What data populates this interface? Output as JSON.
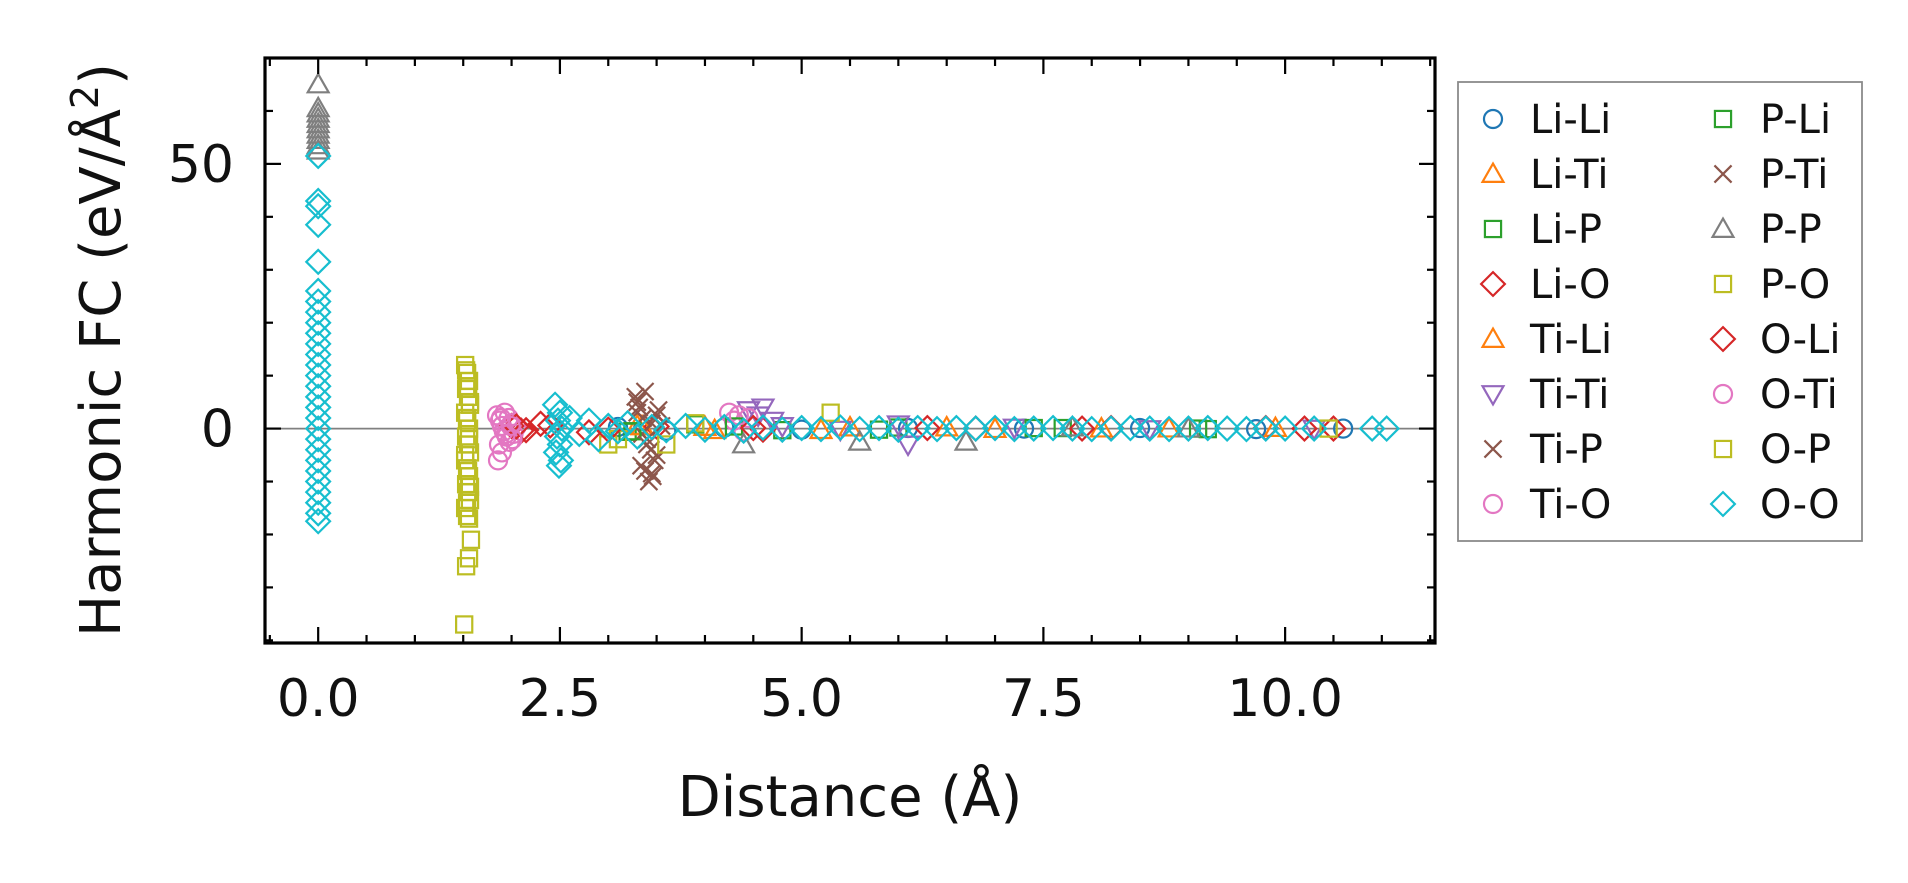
{
  "chart_data": {
    "type": "scatter",
    "xlabel": "Distance (Å)",
    "ylabel_main": "Harmonic FC (eV/Å",
    "ylabel_sup": "2",
    "ylabel_close": ")",
    "xlim": [
      -0.55,
      11.55
    ],
    "ylim": [
      -40.5,
      70
    ],
    "xticks": [
      0.0,
      2.5,
      5.0,
      7.5,
      10.0
    ],
    "xtick_labels": [
      "0.0",
      "2.5",
      "5.0",
      "7.5",
      "10.0"
    ],
    "yticks": [
      0,
      50
    ],
    "ytick_labels": [
      "0",
      "50"
    ],
    "x_minor_step": 0.5,
    "y_minor_step": 10,
    "zero_line": true,
    "legend_position": "right-outside",
    "legend_columns": 2,
    "series": [
      {
        "name": "Li-Li",
        "marker": "circle",
        "color": "#1f77b4",
        "points": [
          [
            3.1,
            0.3
          ],
          [
            3.6,
            -0.4
          ],
          [
            4.2,
            0.2
          ],
          [
            5.0,
            -0.2
          ],
          [
            6.1,
            0.1
          ],
          [
            7.3,
            0.0
          ],
          [
            8.5,
            0.1
          ],
          [
            9.7,
            -0.1
          ],
          [
            10.6,
            0.0
          ]
        ]
      },
      {
        "name": "Li-Ti",
        "marker": "triangle-up",
        "color": "#ff7f0e",
        "points": [
          [
            3.3,
            0.5
          ],
          [
            4.0,
            0.3
          ],
          [
            5.2,
            -0.3
          ],
          [
            6.5,
            0.2
          ],
          [
            8.1,
            0.0
          ],
          [
            9.9,
            0.1
          ]
        ]
      },
      {
        "name": "Li-P",
        "marker": "square",
        "color": "#2ca02c",
        "points": [
          [
            3.2,
            -0.6
          ],
          [
            3.9,
            0.8
          ],
          [
            4.8,
            -0.3
          ],
          [
            6.0,
            0.2
          ],
          [
            7.7,
            0.1
          ],
          [
            9.2,
            -0.1
          ]
        ]
      },
      {
        "name": "Li-O",
        "marker": "diamond",
        "color": "#d62728",
        "points": [
          [
            2.0,
            0.5
          ],
          [
            2.1,
            -0.4
          ],
          [
            2.3,
            0.9
          ],
          [
            2.8,
            -0.7
          ],
          [
            3.5,
            0.4
          ],
          [
            4.6,
            -0.2
          ],
          [
            6.3,
            0.1
          ],
          [
            7.9,
            0.0
          ],
          [
            9.8,
            0.1
          ],
          [
            10.5,
            0.0
          ]
        ]
      },
      {
        "name": "Ti-Li",
        "marker": "triangle-up",
        "color": "#ff7f0e",
        "points": [
          [
            3.35,
            0.4
          ],
          [
            4.1,
            -0.3
          ],
          [
            5.5,
            0.2
          ],
          [
            7.0,
            -0.1
          ],
          [
            8.8,
            0.0
          ]
        ]
      },
      {
        "name": "Ti-Ti",
        "marker": "triangle-down",
        "color": "#9467bd",
        "points": [
          [
            4.45,
            3.5
          ],
          [
            4.55,
            2.5
          ],
          [
            4.6,
            4.0
          ],
          [
            4.7,
            1.5
          ],
          [
            4.8,
            0.5
          ],
          [
            5.4,
            -0.2
          ],
          [
            6.0,
            0.8
          ],
          [
            6.1,
            -3.0
          ],
          [
            7.2,
            0.2
          ],
          [
            8.6,
            -0.1
          ],
          [
            10.3,
            0.0
          ]
        ]
      },
      {
        "name": "Ti-P",
        "marker": "x",
        "color": "#8c564b",
        "points": [
          [
            3.28,
            6.0
          ],
          [
            3.32,
            4.0
          ],
          [
            3.36,
            2.0
          ],
          [
            3.4,
            -2.0
          ],
          [
            3.44,
            -4.0
          ],
          [
            3.48,
            -6.0
          ],
          [
            3.38,
            -8.0
          ],
          [
            3.42,
            -10.0
          ],
          [
            3.46,
            -9.0
          ],
          [
            3.34,
            -7.0
          ],
          [
            3.5,
            -5.0
          ],
          [
            3.3,
            5.0
          ],
          [
            3.52,
            3.5
          ],
          [
            3.55,
            0.5
          ],
          [
            3.45,
            1.0
          ],
          [
            3.35,
            -1.0
          ]
        ]
      },
      {
        "name": "Ti-O",
        "marker": "circle",
        "color": "#e377c2",
        "points": [
          [
            1.85,
            2.5
          ],
          [
            1.88,
            1.5
          ],
          [
            1.9,
            0.5
          ],
          [
            1.92,
            -0.5
          ],
          [
            1.95,
            -1.5
          ],
          [
            1.87,
            -3.0
          ],
          [
            1.9,
            -4.5
          ],
          [
            1.86,
            -6.0
          ],
          [
            1.97,
            2.0
          ],
          [
            2.0,
            1.0
          ],
          [
            2.02,
            -1.0
          ],
          [
            1.93,
            3.0
          ],
          [
            1.98,
            -2.5
          ],
          [
            2.05,
            0.3
          ],
          [
            4.25,
            3.0
          ],
          [
            4.3,
            1.5
          ],
          [
            4.4,
            -0.5
          ],
          [
            4.45,
            2.0
          ]
        ]
      },
      {
        "name": "P-Li",
        "marker": "square",
        "color": "#2ca02c",
        "points": [
          [
            3.25,
            -0.5
          ],
          [
            4.3,
            0.4
          ],
          [
            5.8,
            -0.2
          ],
          [
            7.4,
            0.1
          ],
          [
            9.1,
            0.0
          ]
        ]
      },
      {
        "name": "P-Ti",
        "marker": "x",
        "color": "#8c564b",
        "points": [
          [
            3.3,
            3.0
          ],
          [
            3.4,
            -3.0
          ],
          [
            3.5,
            2.5
          ],
          [
            3.45,
            -8.5
          ],
          [
            3.38,
            7.0
          ]
        ]
      },
      {
        "name": "P-P",
        "marker": "triangle-up",
        "color": "#7f7f7f",
        "points": [
          [
            0.0,
            65.0
          ],
          [
            0.0,
            59.5
          ],
          [
            0.0,
            58.5
          ],
          [
            0.0,
            57.5
          ],
          [
            0.0,
            56.5
          ],
          [
            0.0,
            55.5
          ],
          [
            0.0,
            54.5
          ],
          [
            0.0,
            53.5
          ],
          [
            0.0,
            52.5
          ],
          [
            0.0,
            60.5
          ],
          [
            4.4,
            -3.0
          ],
          [
            5.6,
            -2.5
          ],
          [
            6.7,
            -2.5
          ],
          [
            7.8,
            0.2
          ],
          [
            9.0,
            0.0
          ]
        ]
      },
      {
        "name": "P-O",
        "marker": "square",
        "color": "#bcbd22",
        "points": [
          [
            1.52,
            12.0
          ],
          [
            1.54,
            10.5
          ],
          [
            1.56,
            9.0
          ],
          [
            1.53,
            7.5
          ],
          [
            1.55,
            6.0
          ],
          [
            1.57,
            4.5
          ],
          [
            1.52,
            3.0
          ],
          [
            1.54,
            1.5
          ],
          [
            1.56,
            0.0
          ],
          [
            1.53,
            -1.5
          ],
          [
            1.55,
            -3.0
          ],
          [
            1.57,
            -4.5
          ],
          [
            1.52,
            -6.0
          ],
          [
            1.54,
            -7.5
          ],
          [
            1.56,
            -9.0
          ],
          [
            1.53,
            -10.5
          ],
          [
            1.55,
            -12.0
          ],
          [
            1.57,
            -13.5
          ],
          [
            1.52,
            -15.0
          ],
          [
            1.54,
            -16.5
          ],
          [
            1.58,
            -21.0
          ],
          [
            1.56,
            -24.5
          ],
          [
            1.53,
            -26.0
          ],
          [
            1.51,
            -37.0
          ],
          [
            3.0,
            -3.0
          ],
          [
            3.1,
            -2.0
          ],
          [
            3.6,
            -3.0
          ],
          [
            3.9,
            1.0
          ],
          [
            5.3,
            3.0
          ],
          [
            10.45,
            0.0
          ]
        ]
      },
      {
        "name": "O-Li",
        "marker": "diamond",
        "color": "#d62728",
        "points": [
          [
            2.05,
            0.4
          ],
          [
            2.15,
            -0.3
          ],
          [
            2.4,
            0.6
          ],
          [
            3.0,
            -0.2
          ],
          [
            4.5,
            0.1
          ],
          [
            6.8,
            0.0
          ],
          [
            8.2,
            0.1
          ],
          [
            10.2,
            0.0
          ]
        ]
      },
      {
        "name": "O-Ti",
        "marker": "circle",
        "color": "#e377c2",
        "points": [
          [
            1.89,
            2.0
          ],
          [
            1.94,
            -1.0
          ],
          [
            1.99,
            0.5
          ],
          [
            2.01,
            -2.0
          ],
          [
            4.35,
            2.5
          ]
        ]
      },
      {
        "name": "O-P",
        "marker": "square",
        "color": "#bcbd22",
        "points": [
          [
            1.53,
            11.0
          ],
          [
            1.55,
            8.0
          ],
          [
            1.57,
            5.0
          ],
          [
            1.54,
            2.0
          ],
          [
            1.56,
            -2.0
          ],
          [
            1.52,
            -5.0
          ],
          [
            1.55,
            -8.0
          ],
          [
            1.57,
            -11.0
          ],
          [
            1.54,
            -14.0
          ],
          [
            1.56,
            -17.0
          ]
        ]
      },
      {
        "name": "O-O",
        "marker": "diamond",
        "color": "#17becf",
        "points": [
          [
            0.0,
            51.5
          ],
          [
            0.0,
            43.0
          ],
          [
            0.0,
            42.0
          ],
          [
            0.0,
            38.5
          ],
          [
            0.0,
            31.5
          ],
          [
            0.0,
            26.0
          ],
          [
            0.0,
            24.0
          ],
          [
            0.0,
            22.0
          ],
          [
            0.0,
            20.0
          ],
          [
            0.0,
            18.0
          ],
          [
            0.0,
            16.0
          ],
          [
            0.0,
            14.0
          ],
          [
            0.0,
            12.0
          ],
          [
            0.0,
            10.0
          ],
          [
            0.0,
            8.0
          ],
          [
            0.0,
            6.0
          ],
          [
            0.0,
            4.0
          ],
          [
            0.0,
            2.0
          ],
          [
            0.0,
            0.0
          ],
          [
            0.0,
            -2.0
          ],
          [
            0.0,
            -4.0
          ],
          [
            0.0,
            -6.0
          ],
          [
            0.0,
            -8.0
          ],
          [
            0.0,
            -10.0
          ],
          [
            0.0,
            -12.0
          ],
          [
            0.0,
            -14.0
          ],
          [
            0.0,
            -16.0
          ],
          [
            0.0,
            -17.5
          ],
          [
            2.45,
            4.5
          ],
          [
            2.5,
            3.0
          ],
          [
            2.48,
            1.5
          ],
          [
            2.52,
            0.0
          ],
          [
            2.47,
            -1.5
          ],
          [
            2.5,
            -3.0
          ],
          [
            2.46,
            -4.5
          ],
          [
            2.51,
            -6.0
          ],
          [
            2.49,
            -7.0
          ],
          [
            2.6,
            2.0
          ],
          [
            2.7,
            -1.0
          ],
          [
            2.8,
            1.5
          ],
          [
            2.9,
            -2.0
          ],
          [
            3.0,
            0.5
          ],
          [
            3.1,
            -0.5
          ],
          [
            3.2,
            1.0
          ],
          [
            3.3,
            -1.5
          ],
          [
            3.45,
            0.3
          ],
          [
            3.6,
            -0.3
          ],
          [
            3.8,
            0.5
          ],
          [
            4.0,
            -0.2
          ],
          [
            4.2,
            0.3
          ],
          [
            4.4,
            -0.4
          ],
          [
            4.6,
            0.2
          ],
          [
            4.8,
            -0.2
          ],
          [
            5.0,
            0.1
          ],
          [
            5.2,
            -0.1
          ],
          [
            5.4,
            0.2
          ],
          [
            5.6,
            -0.1
          ],
          [
            5.8,
            0.1
          ],
          [
            6.0,
            -0.2
          ],
          [
            6.2,
            0.1
          ],
          [
            6.4,
            -0.1
          ],
          [
            6.6,
            0.1
          ],
          [
            6.8,
            0.0
          ],
          [
            7.0,
            0.1
          ],
          [
            7.2,
            -0.1
          ],
          [
            7.4,
            0.0
          ],
          [
            7.6,
            0.1
          ],
          [
            7.8,
            0.0
          ],
          [
            8.0,
            -0.1
          ],
          [
            8.2,
            0.0
          ],
          [
            8.4,
            0.1
          ],
          [
            8.6,
            0.0
          ],
          [
            8.8,
            -0.1
          ],
          [
            9.0,
            0.0
          ],
          [
            9.2,
            0.1
          ],
          [
            9.4,
            0.0
          ],
          [
            9.6,
            -0.1
          ],
          [
            9.8,
            0.0
          ],
          [
            10.0,
            0.0
          ],
          [
            10.3,
            0.0
          ],
          [
            10.9,
            0.0
          ],
          [
            11.05,
            0.0
          ]
        ]
      }
    ]
  }
}
